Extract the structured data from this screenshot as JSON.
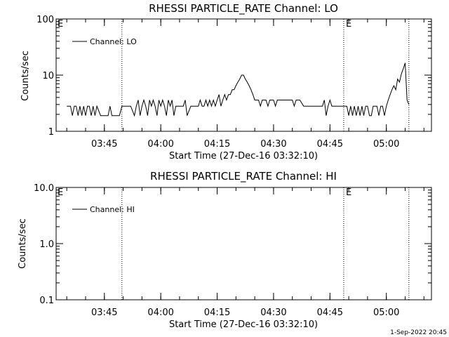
{
  "footer": {
    "timestamp": "1-Sep-2022 20:45"
  },
  "chart_data": [
    {
      "type": "line",
      "title": "RHESSI PARTICLE_RATE Channel: LO",
      "xlabel": "Start Time (27-Dec-16 03:32:10)",
      "ylabel": "Counts/sec",
      "yscale": "log",
      "ylim": [
        1,
        100
      ],
      "y_tick_labels": [
        "1",
        "10",
        "100"
      ],
      "xlim": [
        "03:32:10",
        "05:12:00"
      ],
      "x_tick_labels": [
        "03:45",
        "04:00",
        "04:15",
        "04:30",
        "04:45",
        "05:00"
      ],
      "legend": {
        "position": "top-left"
      },
      "markers": [
        {
          "time": "03:49:40",
          "label": ""
        },
        {
          "time": "04:48:40",
          "label": "E"
        },
        {
          "time": "05:06:00",
          "label": ""
        }
      ],
      "corner_label": "E",
      "series": [
        {
          "name": "Channel: LO",
          "color": "#000000",
          "x": [
            "03:35",
            "03:36",
            "03:36:30",
            "03:37",
            "03:37:30",
            "03:38",
            "03:38:30",
            "03:39",
            "03:39:30",
            "03:40",
            "03:40:30",
            "03:41",
            "03:41:30",
            "03:42",
            "03:42:30",
            "03:43",
            "03:44",
            "03:45",
            "03:46",
            "03:46:30",
            "03:47",
            "03:48",
            "03:49",
            "03:49:40",
            "03:50",
            "03:51",
            "03:52",
            "03:53",
            "03:53:30",
            "03:54",
            "03:54:30",
            "03:55",
            "03:55:30",
            "03:56",
            "03:56:30",
            "03:57",
            "03:57:30",
            "03:58",
            "03:58:30",
            "03:59",
            "03:59:30",
            "04:00",
            "04:00:30",
            "04:01",
            "04:01:30",
            "04:02",
            "04:02:30",
            "04:03",
            "04:03:30",
            "04:04",
            "04:05",
            "04:06",
            "04:06:30",
            "04:07",
            "04:08",
            "04:09",
            "04:10",
            "04:10:30",
            "04:11",
            "04:11:30",
            "04:12",
            "04:12:30",
            "04:13",
            "04:13:30",
            "04:14",
            "04:14:30",
            "04:15",
            "04:15:30",
            "04:16",
            "04:16:30",
            "04:17",
            "04:17:30",
            "04:18",
            "04:18:30",
            "04:19",
            "04:19:30",
            "04:20",
            "04:20:30",
            "04:21",
            "04:21:30",
            "04:22",
            "04:22:30",
            "04:23",
            "04:23:30",
            "04:24",
            "04:24:30",
            "04:25",
            "04:25:30",
            "04:26",
            "04:26:30",
            "04:27",
            "04:27:30",
            "04:28",
            "04:28:30",
            "04:29",
            "04:29:30",
            "04:30",
            "04:30:30",
            "04:31",
            "04:31:30",
            "04:32",
            "04:33",
            "04:34",
            "04:35",
            "04:35:30",
            "04:36",
            "04:37",
            "04:38",
            "04:39",
            "04:40",
            "04:41",
            "04:42",
            "04:43",
            "04:43:30",
            "04:44",
            "04:44:30",
            "04:45",
            "04:45:30",
            "04:46",
            "04:46:30",
            "04:47",
            "04:48",
            "04:49",
            "04:49:30",
            "04:50",
            "04:50:30",
            "04:51",
            "04:51:30",
            "04:52",
            "04:52:30",
            "04:53",
            "04:53:30",
            "04:54",
            "04:54:30",
            "04:55",
            "04:55:30",
            "04:56",
            "04:56:30",
            "04:57",
            "04:57:30",
            "04:58",
            "04:58:30",
            "04:59",
            "04:59:30",
            "05:00",
            "05:00:30",
            "05:01",
            "05:01:30",
            "05:02",
            "05:02:30",
            "05:03",
            "05:03:30",
            "05:04",
            "05:04:30",
            "05:05",
            "05:05:30",
            "05:06"
          ],
          "y": [
            2.8,
            2.8,
            1.9,
            2.8,
            2.8,
            1.9,
            2.8,
            1.9,
            2.8,
            1.9,
            2.8,
            2.8,
            1.9,
            2.8,
            1.9,
            2.8,
            1.9,
            1.9,
            1.9,
            2.8,
            1.9,
            1.9,
            1.9,
            2.8,
            2.8,
            2.8,
            2.8,
            1.9,
            2.8,
            3.6,
            1.9,
            2.8,
            3.6,
            2.8,
            1.9,
            3.6,
            2.8,
            3.6,
            2.8,
            1.9,
            3.6,
            2.8,
            3.6,
            2.8,
            1.9,
            3.6,
            2.8,
            3.6,
            1.9,
            2.8,
            2.8,
            2.8,
            3.6,
            1.9,
            2.8,
            2.8,
            2.8,
            3.6,
            2.8,
            2.8,
            3.6,
            2.8,
            3.6,
            2.8,
            3.6,
            2.8,
            3.6,
            4.5,
            2.8,
            3.6,
            4.5,
            3.6,
            4.5,
            4.5,
            5.5,
            5.5,
            6.5,
            7.5,
            8.5,
            10,
            10,
            8.5,
            7.5,
            6.5,
            5.5,
            4.5,
            3.6,
            3.6,
            3.6,
            2.8,
            3.6,
            3.6,
            3.6,
            2.8,
            3.6,
            3.6,
            3.6,
            2.8,
            3.6,
            3.6,
            3.6,
            3.6,
            3.6,
            3.6,
            2.8,
            3.6,
            3.6,
            2.8,
            2.8,
            2.8,
            2.8,
            2.8,
            2.8,
            3.6,
            1.9,
            2.8,
            3.6,
            2.8,
            2.8,
            2.8,
            2.8,
            2.8,
            2.8,
            2.8,
            1.9,
            2.8,
            1.9,
            2.8,
            1.9,
            2.8,
            1.9,
            2.8,
            1.9,
            2.8,
            2.8,
            1.9,
            1.9,
            2.8,
            2.8,
            2.8,
            1.9,
            2.8,
            2.8,
            1.9,
            2.8,
            3.6,
            4.5,
            5.5,
            6.5,
            5.5,
            8.5,
            7.5,
            10.5,
            13,
            16.5,
            3.6,
            3.0
          ]
        }
      ]
    },
    {
      "type": "line",
      "title": "RHESSI PARTICLE_RATE Channel: HI",
      "xlabel": "Start Time (27-Dec-16 03:32:10)",
      "ylabel": "Counts/sec",
      "yscale": "log",
      "ylim": [
        0.1,
        10
      ],
      "y_tick_labels": [
        "0.1",
        "1.0",
        "10.0"
      ],
      "xlim": [
        "03:32:10",
        "05:12:00"
      ],
      "x_tick_labels": [
        "03:45",
        "04:00",
        "04:15",
        "04:30",
        "04:45",
        "05:00"
      ],
      "legend": {
        "position": "top-left"
      },
      "markers": [
        {
          "time": "03:49:40",
          "label": ""
        },
        {
          "time": "04:48:40",
          "label": "E"
        },
        {
          "time": "05:06:00",
          "label": ""
        }
      ],
      "corner_label": "E",
      "series": [
        {
          "name": "Channel: HI",
          "color": "#000000",
          "x": [],
          "y": []
        }
      ]
    }
  ]
}
